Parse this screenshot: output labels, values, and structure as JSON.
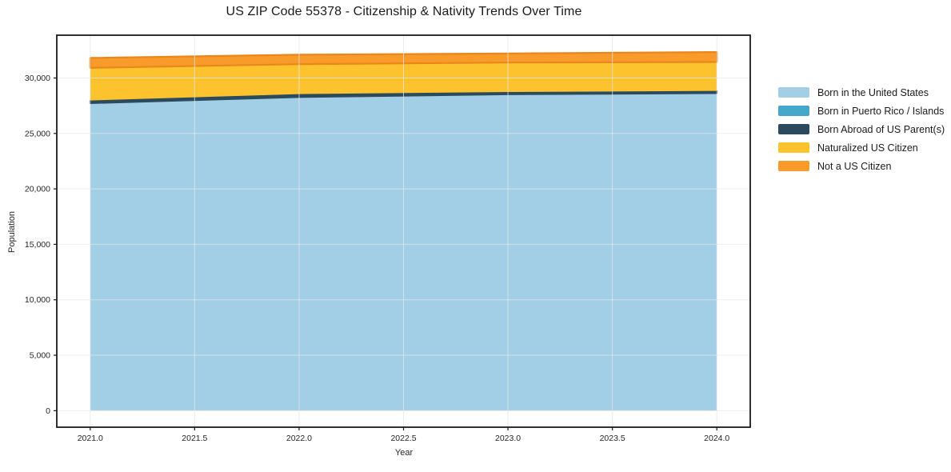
{
  "title": "US ZIP Code 55378 - Citizenship & Nativity Trends Over Time",
  "chart_data": {
    "type": "area",
    "stacked": true,
    "title": "US ZIP Code 55378 - Citizenship & Nativity Trends Over Time",
    "xlabel": "Year",
    "ylabel": "Population",
    "x": [
      2021,
      2022,
      2023,
      2024
    ],
    "series": [
      {
        "name": "Born in the United States",
        "color": "#a3cfe6",
        "edge": "#a3cfe6",
        "edge_width": 0,
        "values": [
          27700,
          28250,
          28500,
          28600
        ]
      },
      {
        "name": "Born in Puerto Rico / Islands",
        "color": "#45a7c9",
        "edge": "#45a7c9",
        "edge_width": 0,
        "values": [
          20,
          20,
          20,
          20
        ]
      },
      {
        "name": "Born Abroad of US Parent(s)",
        "color": "#2b4a5e",
        "edge": "#2b4a5e",
        "edge_width": 1.8,
        "values": [
          250,
          280,
          220,
          220
        ]
      },
      {
        "name": "Naturalized US Citizen",
        "color": "#fdc32f",
        "edge": "#fdc32f",
        "edge_width": 0,
        "values": [
          2950,
          2700,
          2650,
          2600
        ]
      },
      {
        "name": "Not a US Citizen",
        "color": "#f89b2b",
        "edge": "#ea861a",
        "edge_width": 2.2,
        "values": [
          890,
          850,
          820,
          900
        ]
      }
    ],
    "xlim": [
      2020.84,
      2024.16
    ],
    "ylim": [
      -1490,
      33860
    ],
    "xticks": [
      2021.0,
      2021.5,
      2022.0,
      2022.5,
      2023.0,
      2023.5,
      2024.0
    ],
    "xtick_labels": [
      "2021.0",
      "2021.5",
      "2022.0",
      "2022.5",
      "2023.0",
      "2023.5",
      "2024.0"
    ],
    "yticks": [
      0,
      5000,
      10000,
      15000,
      20000,
      25000,
      30000
    ],
    "ytick_labels": [
      "0",
      "5,000",
      "10,000",
      "15,000",
      "20,000",
      "25,000",
      "30,000"
    ],
    "grid": true,
    "legend_position": "right",
    "spine_color": "#1a1a1a",
    "grid_color": "rgba(231,231,231,0.75)"
  }
}
